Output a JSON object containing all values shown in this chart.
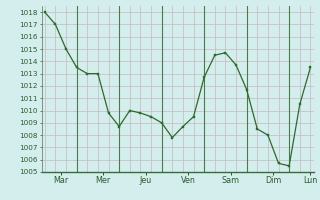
{
  "x_values": [
    0,
    1,
    2,
    3,
    4,
    5,
    6,
    7,
    8,
    9,
    10,
    11,
    12,
    13,
    14,
    15,
    16,
    17,
    18,
    19,
    20,
    21,
    22,
    23,
    24,
    25
  ],
  "y_values": [
    1018,
    1017,
    1015,
    1013.5,
    1013,
    1013,
    1009.8,
    1008.7,
    1010,
    1009.8,
    1009.5,
    1009,
    1007.8,
    1008.7,
    1009.5,
    1012.7,
    1014.5,
    1014.7,
    1013.7,
    1011.7,
    1008.5,
    1008,
    1005.7,
    1005.5,
    1010.5,
    1013.5
  ],
  "x_tick_labels": [
    "Mar",
    "Mer",
    "Jeu",
    "Ven",
    "Sam",
    "Dim",
    "Lun"
  ],
  "x_day_centers": [
    1.5,
    5.5,
    9.5,
    13.5,
    17.5,
    21.5,
    25.0
  ],
  "x_day_dividers": [
    3,
    7,
    11,
    15,
    19,
    23
  ],
  "ylim": [
    1005,
    1018.5
  ],
  "yticks": [
    1005,
    1006,
    1007,
    1008,
    1009,
    1010,
    1011,
    1012,
    1013,
    1014,
    1015,
    1016,
    1017,
    1018
  ],
  "line_color": "#2d6a2d",
  "marker_color": "#2d6a2d",
  "bg_color": "#d4eeee",
  "grid_color": "#c8b8c0",
  "day_line_color": "#4a7a4a",
  "tick_label_color": "#2d5a2d",
  "bottom_line_color": "#3a6a3a"
}
